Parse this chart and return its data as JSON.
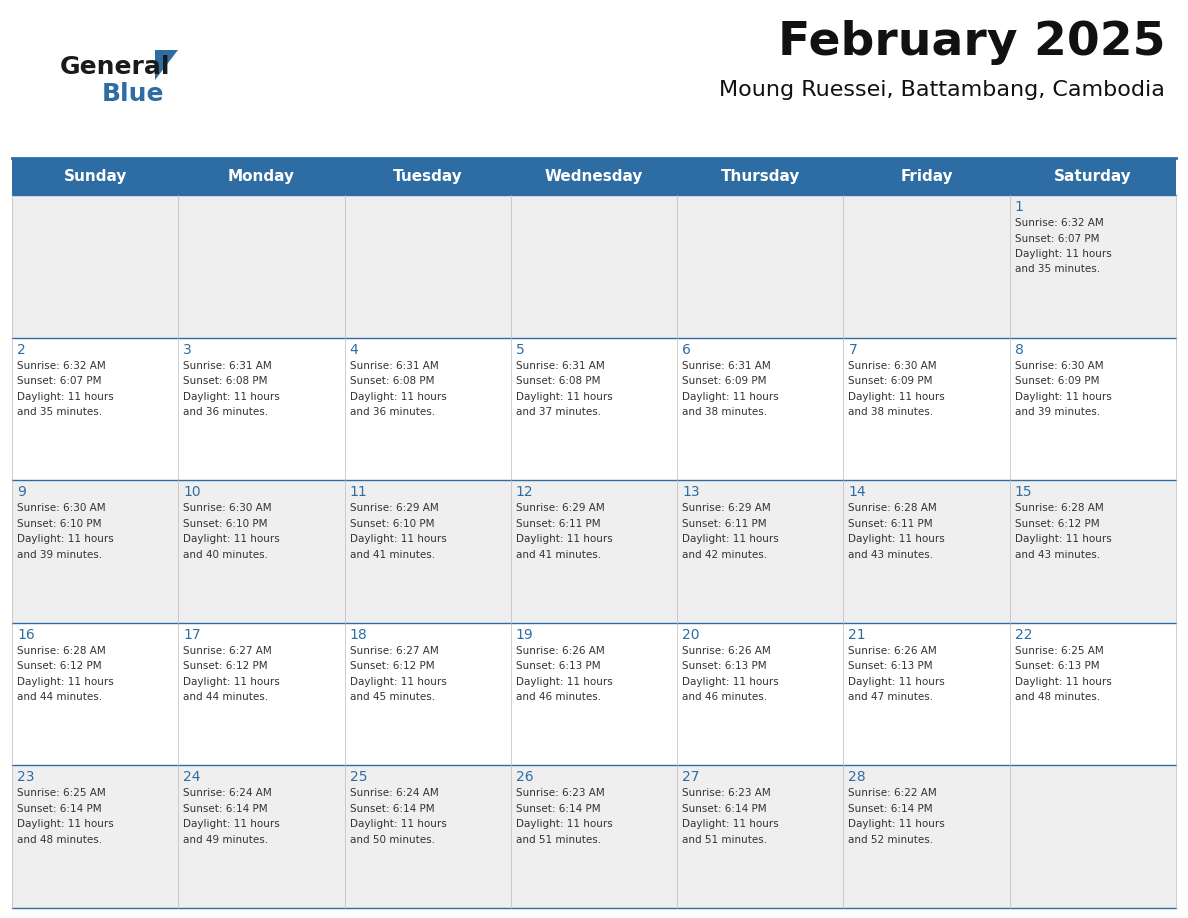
{
  "title": "February 2025",
  "subtitle": "Moung Ruessei, Battambang, Cambodia",
  "header_bg": "#2E6DA4",
  "header_text_color": "#FFFFFF",
  "day_headers": [
    "Sunday",
    "Monday",
    "Tuesday",
    "Wednesday",
    "Thursday",
    "Friday",
    "Saturday"
  ],
  "row_bg_odd": "#EFEFEF",
  "row_bg_even": "#FFFFFF",
  "cell_text_color": "#333333",
  "day_number_color": "#2E6DA4",
  "grid_line_color": "#2E6DA4",
  "background_color": "#FFFFFF",
  "logo_triangle_color": "#2E6DA4",
  "logo_text_color": "#1A1A1A",
  "days": [
    {
      "day": 1,
      "col": 6,
      "row": 0,
      "sunrise": "6:32 AM",
      "sunset": "6:07 PM",
      "daylight_hours": 11,
      "daylight_minutes": 35
    },
    {
      "day": 2,
      "col": 0,
      "row": 1,
      "sunrise": "6:32 AM",
      "sunset": "6:07 PM",
      "daylight_hours": 11,
      "daylight_minutes": 35
    },
    {
      "day": 3,
      "col": 1,
      "row": 1,
      "sunrise": "6:31 AM",
      "sunset": "6:08 PM",
      "daylight_hours": 11,
      "daylight_minutes": 36
    },
    {
      "day": 4,
      "col": 2,
      "row": 1,
      "sunrise": "6:31 AM",
      "sunset": "6:08 PM",
      "daylight_hours": 11,
      "daylight_minutes": 36
    },
    {
      "day": 5,
      "col": 3,
      "row": 1,
      "sunrise": "6:31 AM",
      "sunset": "6:08 PM",
      "daylight_hours": 11,
      "daylight_minutes": 37
    },
    {
      "day": 6,
      "col": 4,
      "row": 1,
      "sunrise": "6:31 AM",
      "sunset": "6:09 PM",
      "daylight_hours": 11,
      "daylight_minutes": 38
    },
    {
      "day": 7,
      "col": 5,
      "row": 1,
      "sunrise": "6:30 AM",
      "sunset": "6:09 PM",
      "daylight_hours": 11,
      "daylight_minutes": 38
    },
    {
      "day": 8,
      "col": 6,
      "row": 1,
      "sunrise": "6:30 AM",
      "sunset": "6:09 PM",
      "daylight_hours": 11,
      "daylight_minutes": 39
    },
    {
      "day": 9,
      "col": 0,
      "row": 2,
      "sunrise": "6:30 AM",
      "sunset": "6:10 PM",
      "daylight_hours": 11,
      "daylight_minutes": 39
    },
    {
      "day": 10,
      "col": 1,
      "row": 2,
      "sunrise": "6:30 AM",
      "sunset": "6:10 PM",
      "daylight_hours": 11,
      "daylight_minutes": 40
    },
    {
      "day": 11,
      "col": 2,
      "row": 2,
      "sunrise": "6:29 AM",
      "sunset": "6:10 PM",
      "daylight_hours": 11,
      "daylight_minutes": 41
    },
    {
      "day": 12,
      "col": 3,
      "row": 2,
      "sunrise": "6:29 AM",
      "sunset": "6:11 PM",
      "daylight_hours": 11,
      "daylight_minutes": 41
    },
    {
      "day": 13,
      "col": 4,
      "row": 2,
      "sunrise": "6:29 AM",
      "sunset": "6:11 PM",
      "daylight_hours": 11,
      "daylight_minutes": 42
    },
    {
      "day": 14,
      "col": 5,
      "row": 2,
      "sunrise": "6:28 AM",
      "sunset": "6:11 PM",
      "daylight_hours": 11,
      "daylight_minutes": 43
    },
    {
      "day": 15,
      "col": 6,
      "row": 2,
      "sunrise": "6:28 AM",
      "sunset": "6:12 PM",
      "daylight_hours": 11,
      "daylight_minutes": 43
    },
    {
      "day": 16,
      "col": 0,
      "row": 3,
      "sunrise": "6:28 AM",
      "sunset": "6:12 PM",
      "daylight_hours": 11,
      "daylight_minutes": 44
    },
    {
      "day": 17,
      "col": 1,
      "row": 3,
      "sunrise": "6:27 AM",
      "sunset": "6:12 PM",
      "daylight_hours": 11,
      "daylight_minutes": 44
    },
    {
      "day": 18,
      "col": 2,
      "row": 3,
      "sunrise": "6:27 AM",
      "sunset": "6:12 PM",
      "daylight_hours": 11,
      "daylight_minutes": 45
    },
    {
      "day": 19,
      "col": 3,
      "row": 3,
      "sunrise": "6:26 AM",
      "sunset": "6:13 PM",
      "daylight_hours": 11,
      "daylight_minutes": 46
    },
    {
      "day": 20,
      "col": 4,
      "row": 3,
      "sunrise": "6:26 AM",
      "sunset": "6:13 PM",
      "daylight_hours": 11,
      "daylight_minutes": 46
    },
    {
      "day": 21,
      "col": 5,
      "row": 3,
      "sunrise": "6:26 AM",
      "sunset": "6:13 PM",
      "daylight_hours": 11,
      "daylight_minutes": 47
    },
    {
      "day": 22,
      "col": 6,
      "row": 3,
      "sunrise": "6:25 AM",
      "sunset": "6:13 PM",
      "daylight_hours": 11,
      "daylight_minutes": 48
    },
    {
      "day": 23,
      "col": 0,
      "row": 4,
      "sunrise": "6:25 AM",
      "sunset": "6:14 PM",
      "daylight_hours": 11,
      "daylight_minutes": 48
    },
    {
      "day": 24,
      "col": 1,
      "row": 4,
      "sunrise": "6:24 AM",
      "sunset": "6:14 PM",
      "daylight_hours": 11,
      "daylight_minutes": 49
    },
    {
      "day": 25,
      "col": 2,
      "row": 4,
      "sunrise": "6:24 AM",
      "sunset": "6:14 PM",
      "daylight_hours": 11,
      "daylight_minutes": 50
    },
    {
      "day": 26,
      "col": 3,
      "row": 4,
      "sunrise": "6:23 AM",
      "sunset": "6:14 PM",
      "daylight_hours": 11,
      "daylight_minutes": 51
    },
    {
      "day": 27,
      "col": 4,
      "row": 4,
      "sunrise": "6:23 AM",
      "sunset": "6:14 PM",
      "daylight_hours": 11,
      "daylight_minutes": 51
    },
    {
      "day": 28,
      "col": 5,
      "row": 4,
      "sunrise": "6:22 AM",
      "sunset": "6:14 PM",
      "daylight_hours": 11,
      "daylight_minutes": 52
    }
  ]
}
